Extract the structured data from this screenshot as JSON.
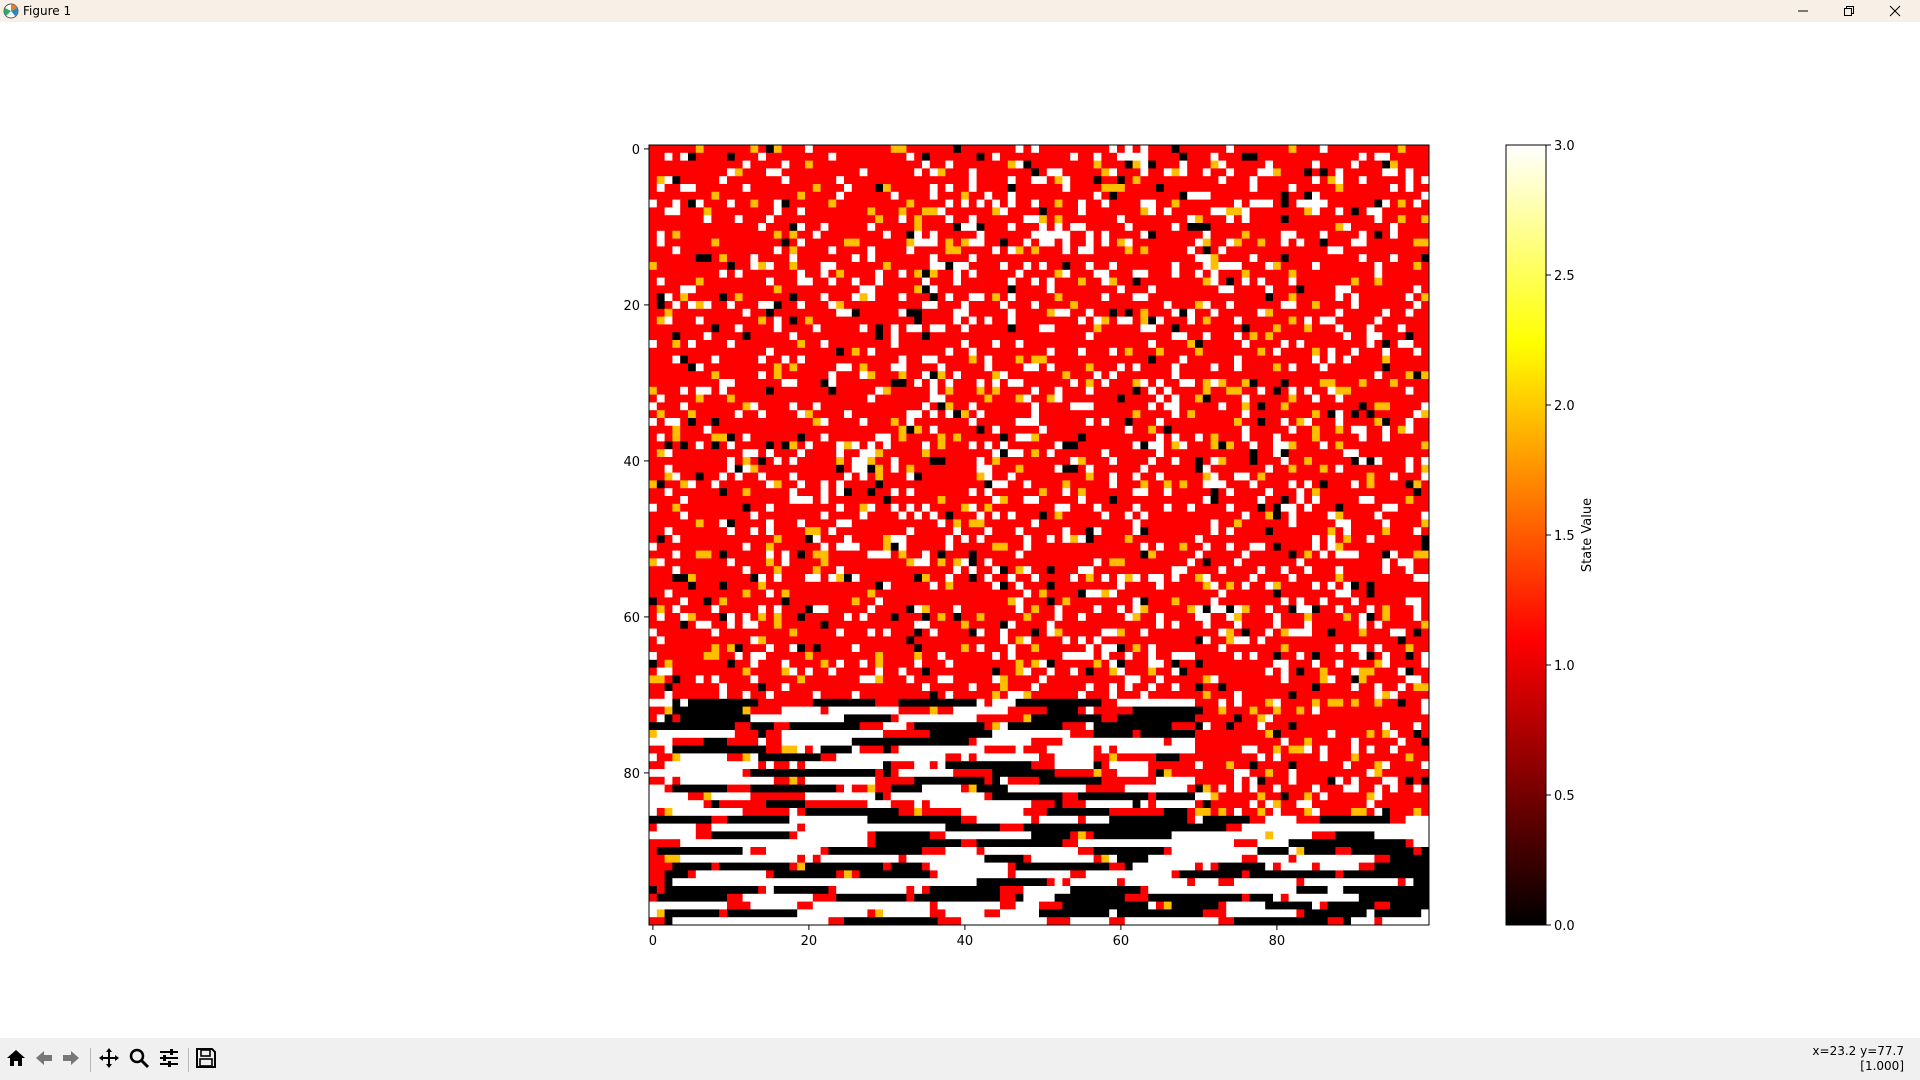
{
  "window": {
    "title": "Figure 1",
    "icons": [
      "matplotlib-logo-icon",
      "minimize-icon",
      "restore-icon",
      "close-icon"
    ]
  },
  "toolbar": {
    "buttons": [
      "home-icon",
      "back-icon",
      "forward-icon",
      "pan-icon",
      "zoom-icon",
      "configure-subplots-icon",
      "save-icon"
    ],
    "coordinates": "x=23.2 y=77.7",
    "pixel_value": "[1.000]"
  },
  "chart_data": {
    "type": "heatmap",
    "rows": 100,
    "cols": 100,
    "value_range": [
      0,
      3
    ],
    "dominant_value": 1,
    "states": [
      0,
      1,
      2,
      3
    ],
    "colormap": "hot",
    "colormap_colors": [
      "#000000",
      "#ff0000",
      "#ffbf00",
      "#ffffff"
    ],
    "x_ticks": [
      "0",
      "20",
      "40",
      "60",
      "80"
    ],
    "y_ticks": [
      "0",
      "20",
      "40",
      "60",
      "80"
    ],
    "colorbar": {
      "label": "State Value",
      "ticks": [
        "0.0",
        "0.5",
        "1.0",
        "1.5",
        "2.0",
        "2.5",
        "3.0"
      ],
      "range": [
        0,
        3
      ]
    },
    "grid": false
  }
}
